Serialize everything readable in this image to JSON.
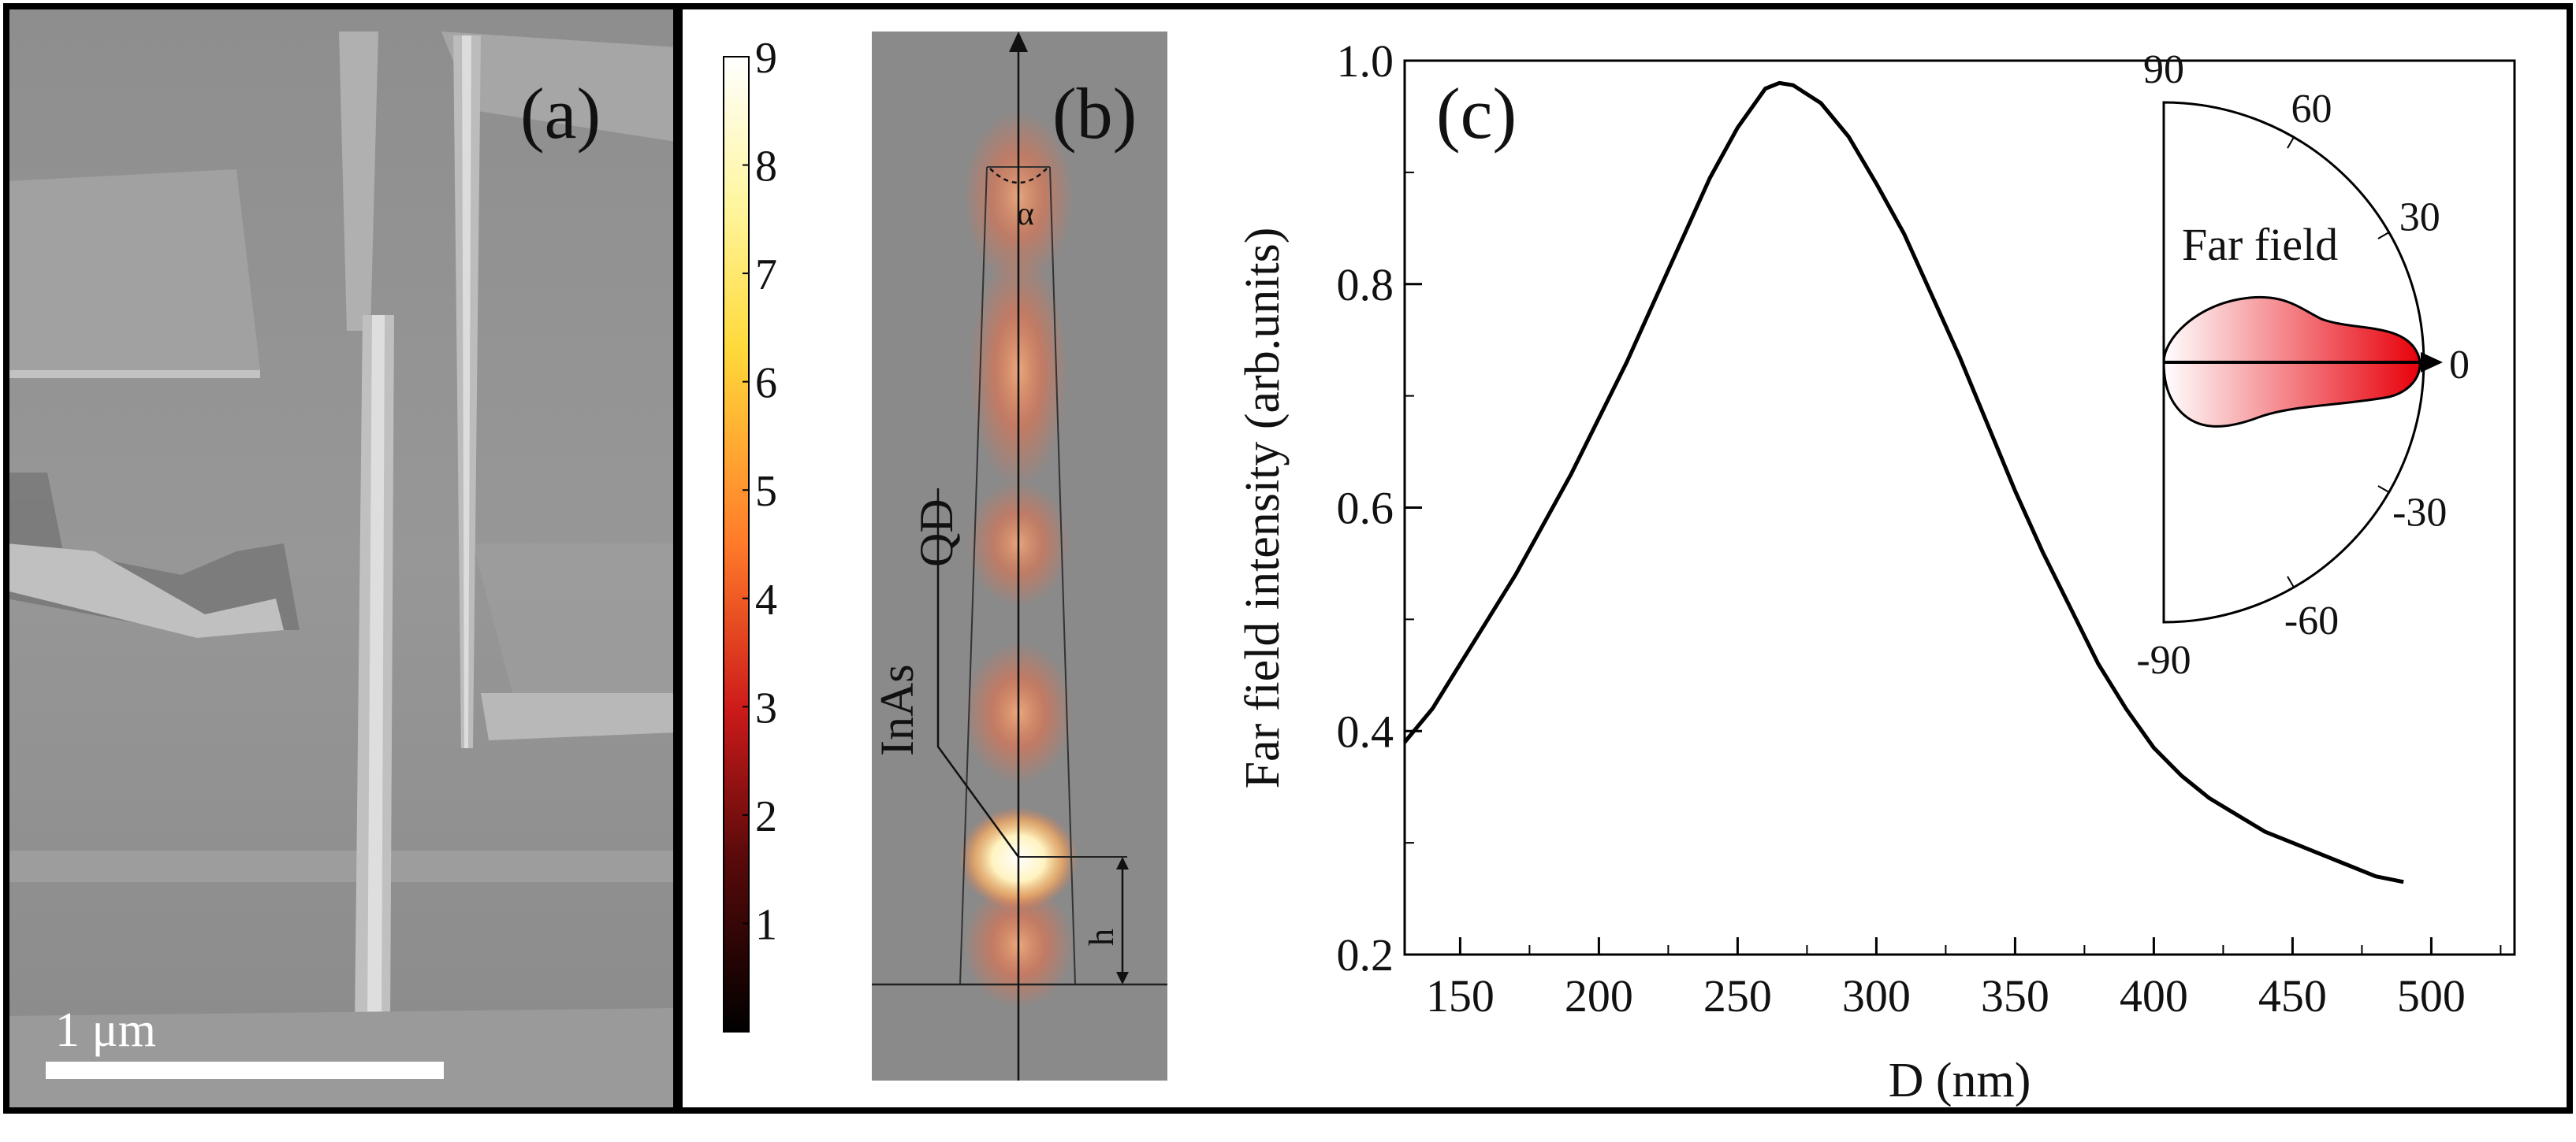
{
  "figure": {
    "panels": {
      "a": {
        "label": "(a)",
        "scale_bar_text": "1 μm"
      },
      "b": {
        "label": "(b)",
        "angle_symbol": "α",
        "height_symbol": "h",
        "qd_label_line1": "InAs",
        "qd_label_line2": "QD"
      },
      "c": {
        "label": "(c)"
      }
    }
  },
  "chart_data": [
    {
      "type": "heatmap",
      "panel": "b",
      "colorbar_ticks": [
        "1",
        "2",
        "3",
        "4",
        "5",
        "6",
        "7",
        "8",
        "9"
      ],
      "colorbar_range": [
        0,
        9
      ],
      "colors": {
        "low": "#000000",
        "mid1": "#cc1a1a",
        "mid2": "#ff7a2a",
        "mid3": "#ffd93a",
        "high": "#ffffff",
        "background": "#8a8a8a"
      }
    },
    {
      "type": "line",
      "panel": "c",
      "xlabel": "D (nm)",
      "ylabel": "Far field intensity (arb.units)",
      "xlim": [
        130,
        530
      ],
      "ylim": [
        0.2,
        1.0
      ],
      "xticks": [
        "150",
        "200",
        "250",
        "300",
        "350",
        "400",
        "450",
        "500"
      ],
      "yticks": [
        "0.2",
        "0.4",
        "0.6",
        "0.8",
        "1.0"
      ],
      "series": [
        {
          "name": "Far field intensity",
          "color": "#000000",
          "x": [
            130,
            140,
            150,
            160,
            170,
            180,
            190,
            200,
            210,
            220,
            230,
            240,
            250,
            260,
            265,
            270,
            280,
            290,
            300,
            310,
            320,
            330,
            340,
            350,
            360,
            370,
            380,
            390,
            400,
            410,
            420,
            430,
            440,
            450,
            460,
            470,
            480,
            490
          ],
          "y": [
            0.39,
            0.42,
            0.46,
            0.5,
            0.54,
            0.585,
            0.63,
            0.68,
            0.73,
            0.785,
            0.84,
            0.895,
            0.94,
            0.975,
            0.98,
            0.978,
            0.962,
            0.932,
            0.89,
            0.845,
            0.79,
            0.735,
            0.675,
            0.615,
            0.56,
            0.51,
            0.46,
            0.42,
            0.385,
            0.36,
            0.34,
            0.325,
            0.31,
            0.3,
            0.29,
            0.28,
            0.27,
            0.265
          ]
        }
      ],
      "inset": {
        "type": "polar",
        "title": "Far field",
        "angle_labels": [
          "90",
          "60",
          "30",
          "0",
          "-30",
          "-60",
          "-90"
        ],
        "angles_deg": [
          90,
          60,
          30,
          0,
          -30,
          -60,
          -90
        ],
        "colors": {
          "fill_start": "#ffffff",
          "fill_end": "#e8000a"
        }
      }
    }
  ]
}
